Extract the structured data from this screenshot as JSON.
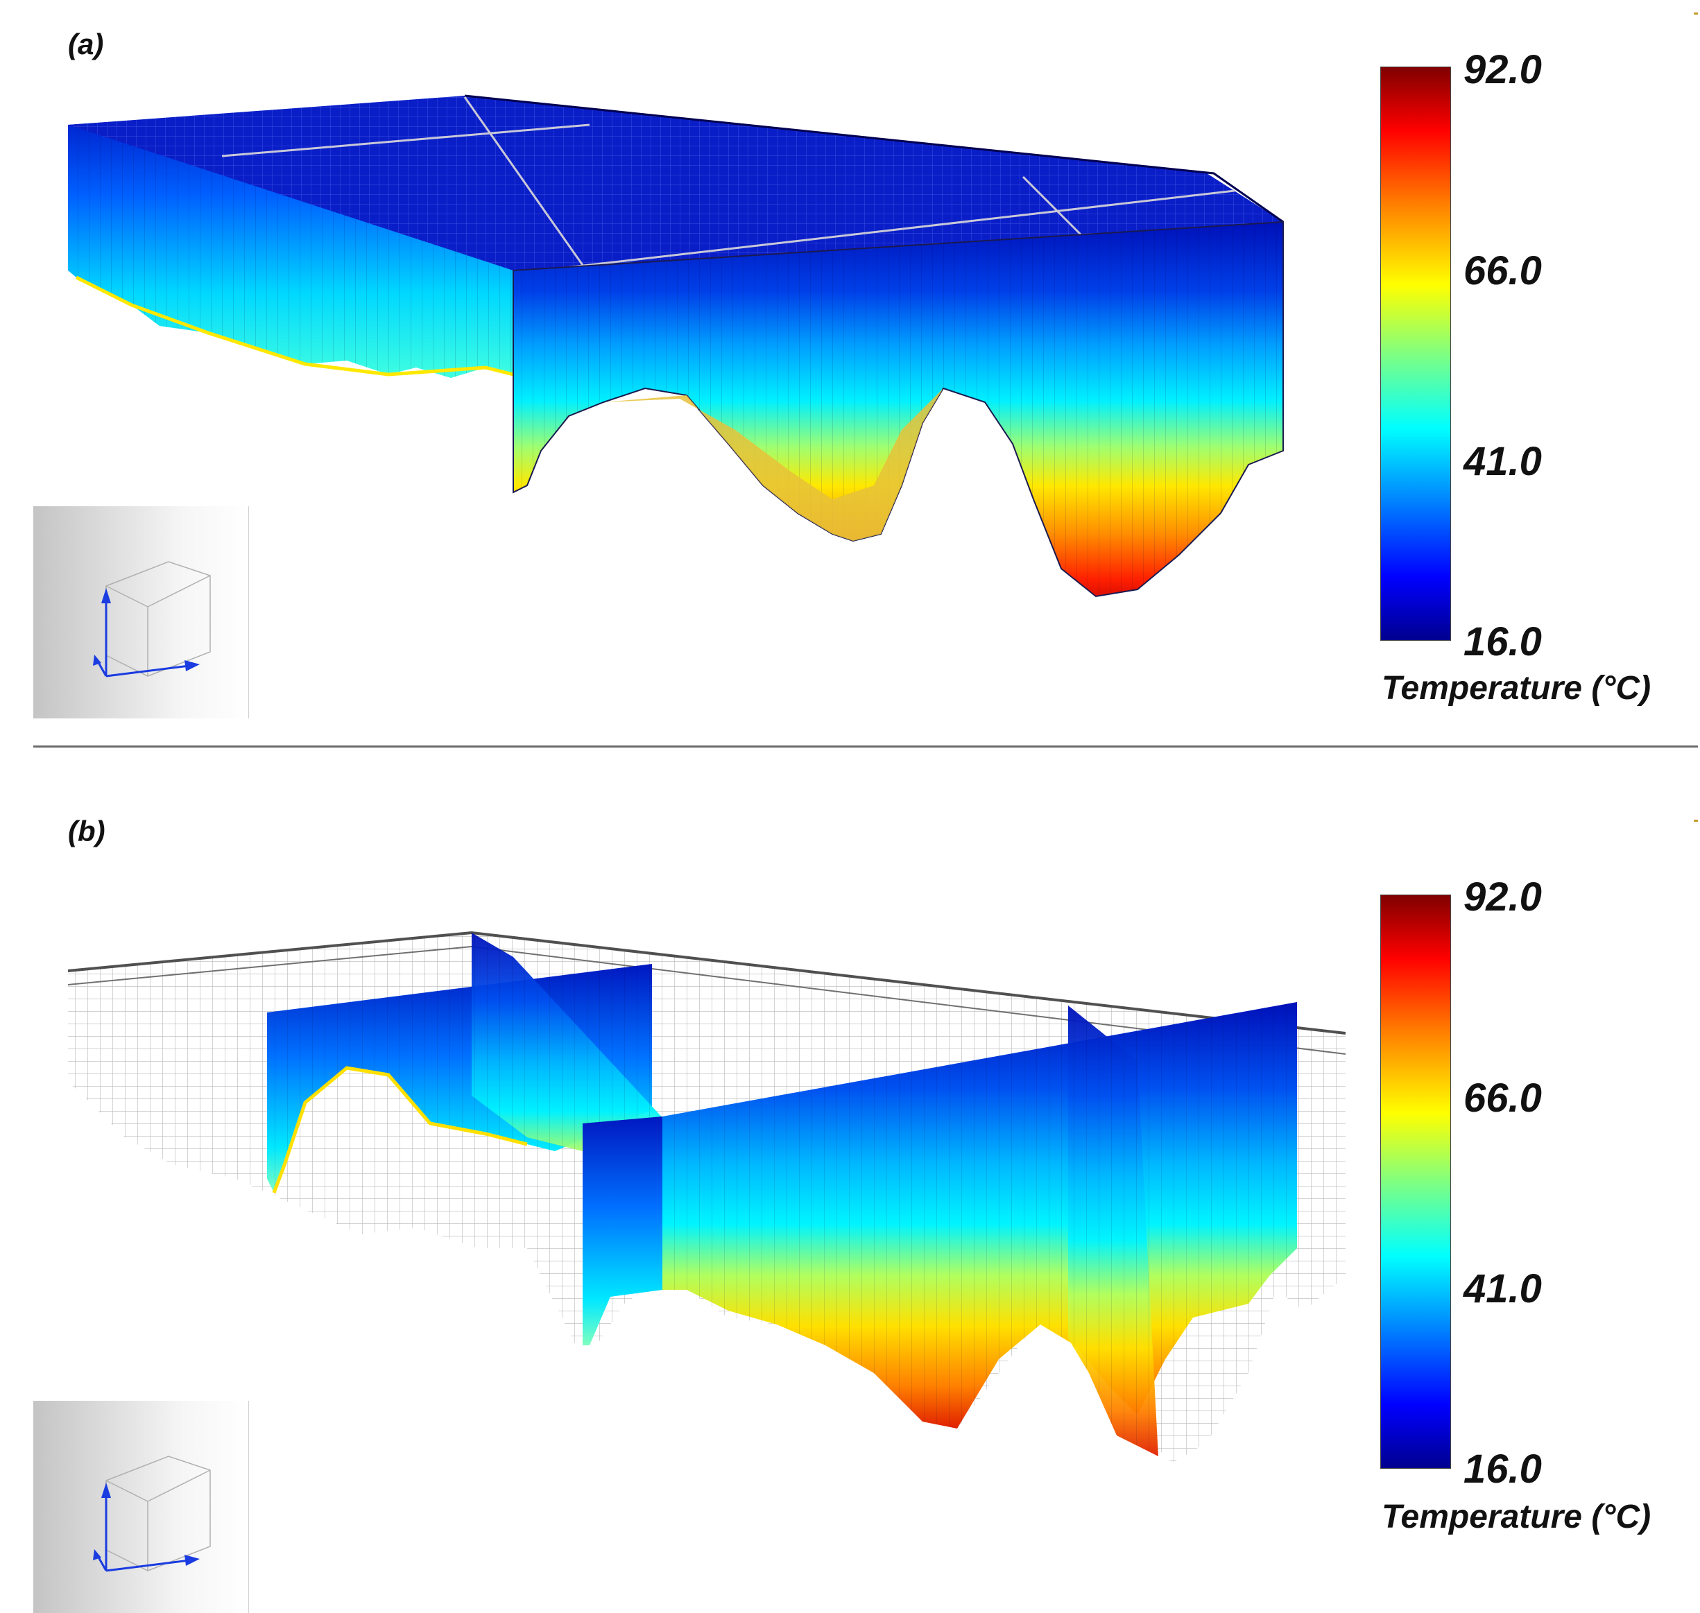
{
  "panels": [
    {
      "label": "(a)",
      "colorbar": {
        "ticks": [
          "92.0",
          "66.0",
          "41.0",
          "16.0"
        ],
        "title": "Temperature (°C)",
        "min": 16.0,
        "max": 92.0
      }
    },
    {
      "label": "(b)",
      "colorbar": {
        "ticks": [
          "92.0",
          "66.0",
          "41.0",
          "16.0"
        ],
        "title": "Temperature (°C)",
        "min": 16.0,
        "max": 92.0
      }
    }
  ],
  "colors": {
    "cold": "#0000c8",
    "cyan": "#00e5ff",
    "warm": "#ffd400",
    "hot": "#e00000",
    "mesh": "#b4b4b4"
  }
}
